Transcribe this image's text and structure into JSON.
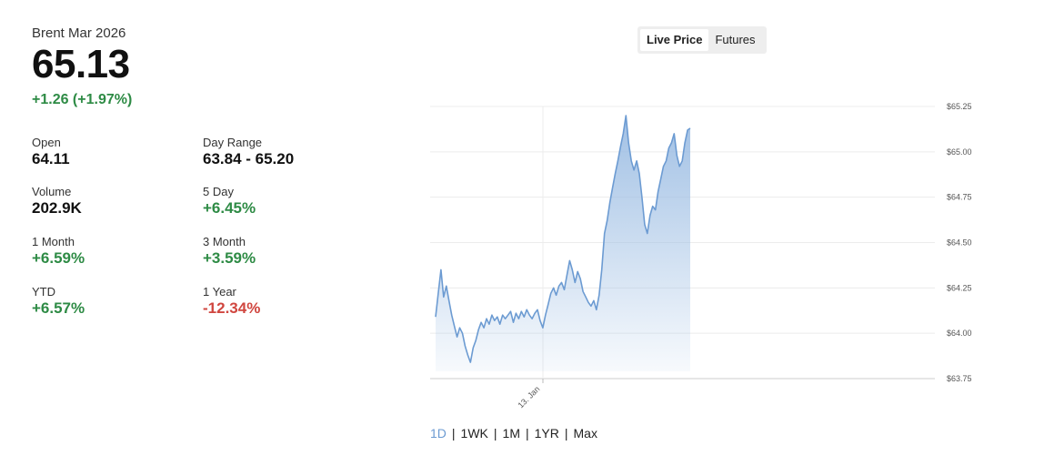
{
  "header": {
    "instrument": "Brent Mar 2026",
    "price": "65.13",
    "change": "+1.26 (+1.97%)"
  },
  "stats": [
    {
      "label": "Open",
      "value": "64.11",
      "tone": "neu"
    },
    {
      "label": "Day Range",
      "value": "63.84 - 65.20",
      "tone": "neu"
    },
    {
      "label": "Volume",
      "value": "202.9K",
      "tone": "neu"
    },
    {
      "label": "5 Day",
      "value": "+6.45%",
      "tone": "pos"
    },
    {
      "label": "1 Month",
      "value": "+6.59%",
      "tone": "pos"
    },
    {
      "label": "3 Month",
      "value": "+3.59%",
      "tone": "pos"
    },
    {
      "label": "YTD",
      "value": "+6.57%",
      "tone": "pos"
    },
    {
      "label": "1 Year",
      "value": "-12.34%",
      "tone": "neg"
    }
  ],
  "toggle": {
    "live_label": "Live Price",
    "futures_label": "Futures",
    "active": "live"
  },
  "ranges": [
    {
      "label": "1D",
      "active": true
    },
    {
      "label": "1WK",
      "active": false
    },
    {
      "label": "1M",
      "active": false
    },
    {
      "label": "1YR",
      "active": false
    },
    {
      "label": "Max",
      "active": false
    }
  ],
  "colors": {
    "positive": "#2e8b45",
    "negative": "#d0463f",
    "line": "#6c9bd2",
    "area_top": "#9cbde3",
    "grid": "#ececec"
  },
  "chart_data": {
    "type": "area",
    "x_tick_labels": [
      "13. Jan"
    ],
    "y_tick_labels": [
      "$65.25",
      "$65.00",
      "$64.75",
      "$64.50",
      "$64.25",
      "$64.00",
      "$63.75"
    ],
    "y_ticks": [
      65.25,
      65.0,
      64.75,
      64.5,
      64.25,
      64.0,
      63.75
    ],
    "ylim": [
      63.75,
      65.25
    ],
    "grid": true,
    "series": [
      {
        "values": [
          64.09,
          64.22,
          64.35,
          64.2,
          64.26,
          64.18,
          64.1,
          64.04,
          63.98,
          64.03,
          64.0,
          63.93,
          63.88,
          63.84,
          63.92,
          63.96,
          64.02,
          64.06,
          64.03,
          64.08,
          64.05,
          64.1,
          64.07,
          64.09,
          64.05,
          64.1,
          64.08,
          64.1,
          64.12,
          64.06,
          64.11,
          64.08,
          64.12,
          64.09,
          64.13,
          64.1,
          64.08,
          64.11,
          64.13,
          64.07,
          64.03,
          64.1,
          64.16,
          64.22,
          64.25,
          64.21,
          64.26,
          64.28,
          64.24,
          64.32,
          64.4,
          64.35,
          64.28,
          64.34,
          64.3,
          64.23,
          64.2,
          64.17,
          64.15,
          64.18,
          64.13,
          64.21,
          64.35,
          64.55,
          64.62,
          64.72,
          64.8,
          64.88,
          64.95,
          65.03,
          65.1,
          65.2,
          65.05,
          64.95,
          64.9,
          64.95,
          64.88,
          64.75,
          64.6,
          64.55,
          64.65,
          64.7,
          64.68,
          64.78,
          64.85,
          64.92,
          64.95,
          65.02,
          65.05,
          65.1,
          64.98,
          64.92,
          64.95,
          65.05,
          65.12,
          65.13
        ]
      }
    ]
  }
}
